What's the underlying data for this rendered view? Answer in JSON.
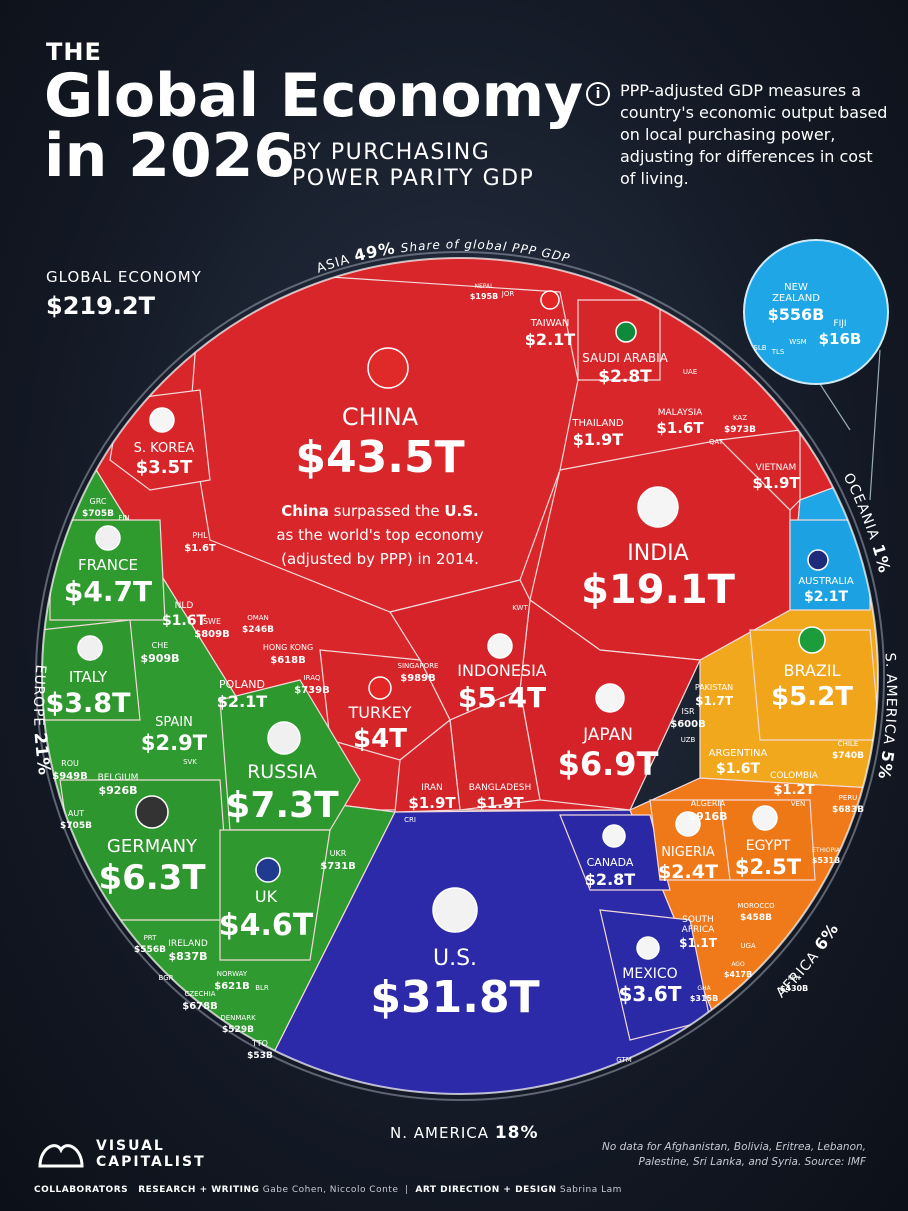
{
  "header": {
    "the": "THE",
    "title_line1": "Global Economy",
    "title_line2": "in 2026",
    "subtitle_line1": "BY PURCHASING",
    "subtitle_line2": "POWER PARITY GDP",
    "info_icon_glyph": "i",
    "info_text": "PPP-adjusted GDP measures a country's economic output based on local purchasing power, adjusting for differences in cost of living."
  },
  "global": {
    "label": "GLOBAL ECONOMY",
    "value": "$219.2T"
  },
  "annotation": {
    "line1_pre": "China",
    "line1_mid": " surpassed the ",
    "line1_us": "U.S.",
    "line2": "as the world's top economy",
    "line3": "(adjusted by PPP) in 2014."
  },
  "footer": {
    "brand_line1": "VISUAL",
    "brand_line2": "CAPITALIST",
    "collaborators": "COLLABORATORS",
    "rw_label": "RESEARCH + WRITING",
    "rw_names": "Gabe Cohen, Niccolo Conte",
    "ad_label": "ART DIRECTION + DESIGN",
    "ad_names": "Sabrina Lam",
    "nodata": "No data for Afghanistan, Bolivia, Eritrea, Lebanon, Palestine, Sri Lanka, and Syria. Source: IMF"
  },
  "chart_data": {
    "type": "voronoi treemap",
    "units": "PPP GDP",
    "regions": [
      {
        "name": "ASIA",
        "share": "49%",
        "share_note": "Share of global PPP GDP",
        "color": "#d9262b"
      },
      {
        "name": "EUROPE",
        "share": "21%",
        "color": "#2f9a2f"
      },
      {
        "name": "N. AMERICA",
        "share": "18%",
        "color": "#2c2aa8"
      },
      {
        "name": "AFRICA",
        "share": "6%",
        "color": "#f07a1a"
      },
      {
        "name": "S. AMERICA",
        "share": "5%",
        "color": "#f2a81c"
      },
      {
        "name": "OCEANIA",
        "share": "1%",
        "color": "#1ea6e6"
      }
    ],
    "countries": [
      {
        "name": "CHINA",
        "value": "$43.5T",
        "region": "ASIA"
      },
      {
        "name": "INDIA",
        "value": "$19.1T",
        "region": "ASIA"
      },
      {
        "name": "JAPAN",
        "value": "$6.9T",
        "region": "ASIA"
      },
      {
        "name": "INDONESIA",
        "value": "$5.4T",
        "region": "ASIA"
      },
      {
        "name": "TURKEY",
        "value": "$4T",
        "region": "ASIA"
      },
      {
        "name": "S. KOREA",
        "value": "$3.5T",
        "region": "ASIA"
      },
      {
        "name": "SAUDI ARABIA",
        "value": "$2.8T",
        "region": "ASIA"
      },
      {
        "name": "TAIWAN",
        "value": "$2.1T",
        "region": "ASIA"
      },
      {
        "name": "THAILAND",
        "value": "$1.9T",
        "region": "ASIA"
      },
      {
        "name": "VIETNAM",
        "value": "$1.9T",
        "region": "ASIA"
      },
      {
        "name": "IRAN",
        "value": "$1.9T",
        "region": "ASIA"
      },
      {
        "name": "BANGLADESH",
        "value": "$1.9T",
        "region": "ASIA"
      },
      {
        "name": "PAKISTAN",
        "value": "$1.7T",
        "region": "ASIA"
      },
      {
        "name": "MALAYSIA",
        "value": "$1.6T",
        "region": "ASIA"
      },
      {
        "name": "PHL",
        "value": "$1.6T",
        "region": "ASIA"
      },
      {
        "name": "SINGAPORE",
        "value": "$989B",
        "region": "ASIA"
      },
      {
        "name": "KAZ",
        "value": "$973B",
        "region": "ASIA"
      },
      {
        "name": "IRAQ",
        "value": "$739B",
        "region": "ASIA"
      },
      {
        "name": "HONG KONG",
        "value": "$618B",
        "region": "ASIA"
      },
      {
        "name": "ISR",
        "value": "$600B",
        "region": "ASIA"
      },
      {
        "name": "OMAN",
        "value": "$246B",
        "region": "ASIA"
      },
      {
        "name": "NEPAL",
        "value": "$195B",
        "region": "ASIA"
      },
      {
        "name": "RUSSIA",
        "value": "$7.3T",
        "region": "EUROPE"
      },
      {
        "name": "GERMANY",
        "value": "$6.3T",
        "region": "EUROPE"
      },
      {
        "name": "FRANCE",
        "value": "$4.7T",
        "region": "EUROPE"
      },
      {
        "name": "UK",
        "value": "$4.6T",
        "region": "EUROPE"
      },
      {
        "name": "ITALY",
        "value": "$3.8T",
        "region": "EUROPE"
      },
      {
        "name": "SPAIN",
        "value": "$2.9T",
        "region": "EUROPE"
      },
      {
        "name": "POLAND",
        "value": "$2.1T",
        "region": "EUROPE"
      },
      {
        "name": "NLD",
        "value": "$1.6T",
        "region": "EUROPE"
      },
      {
        "name": "ROU",
        "value": "$949B",
        "region": "EUROPE"
      },
      {
        "name": "BELGIUM",
        "value": "$926B",
        "region": "EUROPE"
      },
      {
        "name": "CHE",
        "value": "$909B",
        "region": "EUROPE"
      },
      {
        "name": "IRELAND",
        "value": "$837B",
        "region": "EUROPE"
      },
      {
        "name": "SWE",
        "value": "$809B",
        "region": "EUROPE"
      },
      {
        "name": "UKR",
        "value": "$731B",
        "region": "EUROPE"
      },
      {
        "name": "GRC",
        "value": "$705B",
        "region": "EUROPE"
      },
      {
        "name": "AUT",
        "value": "$705B",
        "region": "EUROPE"
      },
      {
        "name": "CZECHIA",
        "value": "$678B",
        "region": "EUROPE"
      },
      {
        "name": "NORWAY",
        "value": "$621B",
        "region": "EUROPE"
      },
      {
        "name": "PRT",
        "value": "$556B",
        "region": "EUROPE"
      },
      {
        "name": "DENMARK",
        "value": "$529B",
        "region": "EUROPE"
      },
      {
        "name": "U.S.",
        "value": "$31.8T",
        "region": "N. AMERICA"
      },
      {
        "name": "MEXICO",
        "value": "$3.6T",
        "region": "N. AMERICA"
      },
      {
        "name": "CANADA",
        "value": "$2.8T",
        "region": "N. AMERICA"
      },
      {
        "name": "TTO",
        "value": "$53B",
        "region": "N. AMERICA"
      },
      {
        "name": "BRAZIL",
        "value": "$5.2T",
        "region": "S. AMERICA"
      },
      {
        "name": "ARGENTINA",
        "value": "$1.6T",
        "region": "S. AMERICA"
      },
      {
        "name": "COLOMBIA",
        "value": "$1.2T",
        "region": "S. AMERICA"
      },
      {
        "name": "CHILE",
        "value": "$740B",
        "region": "S. AMERICA"
      },
      {
        "name": "PERU",
        "value": "$683B",
        "region": "S. AMERICA"
      },
      {
        "name": "EGYPT",
        "value": "$2.5T",
        "region": "AFRICA"
      },
      {
        "name": "NIGERIA",
        "value": "$2.4T",
        "region": "AFRICA"
      },
      {
        "name": "SOUTH AFRICA",
        "value": "$1.1T",
        "region": "AFRICA"
      },
      {
        "name": "ALGERIA",
        "value": "$916B",
        "region": "AFRICA"
      },
      {
        "name": "ETHIOPIA",
        "value": "$531B",
        "region": "AFRICA"
      },
      {
        "name": "MOROCCO",
        "value": "$458B",
        "region": "AFRICA"
      },
      {
        "name": "KEN",
        "value": "$430B",
        "region": "AFRICA"
      },
      {
        "name": "AGO",
        "value": "$417B",
        "region": "AFRICA"
      },
      {
        "name": "GHA",
        "value": "$315B",
        "region": "AFRICA"
      },
      {
        "name": "AUSTRALIA",
        "value": "$2.1T",
        "region": "OCEANIA"
      },
      {
        "name": "NEW ZEALAND",
        "value": "$556B",
        "region": "OCEANIA"
      },
      {
        "name": "FIJI",
        "value": "$16B",
        "region": "OCEANIA"
      }
    ],
    "minor_labels": [
      "JOR",
      "UAE",
      "QAT",
      "KWT",
      "UZB",
      "FIN",
      "SVK",
      "BGR",
      "BLR",
      "VEN",
      "UGA",
      "CRI",
      "GTM",
      "SLB",
      "TLS",
      "WSM"
    ]
  }
}
